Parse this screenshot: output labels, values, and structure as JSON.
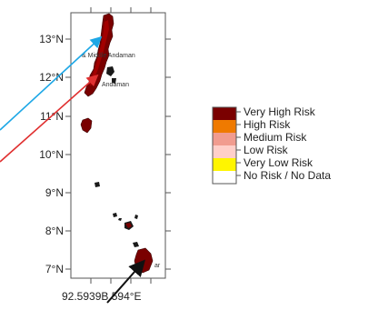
{
  "map": {
    "lat_ticks": [
      "13°N",
      "12°N",
      "11°N",
      "10°N",
      "9°N",
      "8°N",
      "7°N"
    ],
    "lon_tick_text": "92.5939B.594°E",
    "place_labels": {
      "north": "& Middle Andaman",
      "middle": "Andaman",
      "south": "ar"
    }
  },
  "legend": {
    "items": [
      {
        "label": "Very High Risk",
        "color": "#7a0000"
      },
      {
        "label": "High Risk",
        "color": "#ef7a00"
      },
      {
        "label": "Medium Risk",
        "color": "#f19c8f"
      },
      {
        "label": "Low Risk",
        "color": "#ffcfc9"
      },
      {
        "label": "Very Low Risk",
        "color": "#fff500"
      },
      {
        "label": "No Risk / No Data",
        "color": "#ffffff"
      }
    ]
  },
  "colors": {
    "frame": "#555555",
    "land_dark": "#7a0000",
    "land_mid": "#c20000",
    "arrow_blue": "#1da7e6",
    "arrow_red": "#e03030",
    "arrow_black": "#111111"
  }
}
